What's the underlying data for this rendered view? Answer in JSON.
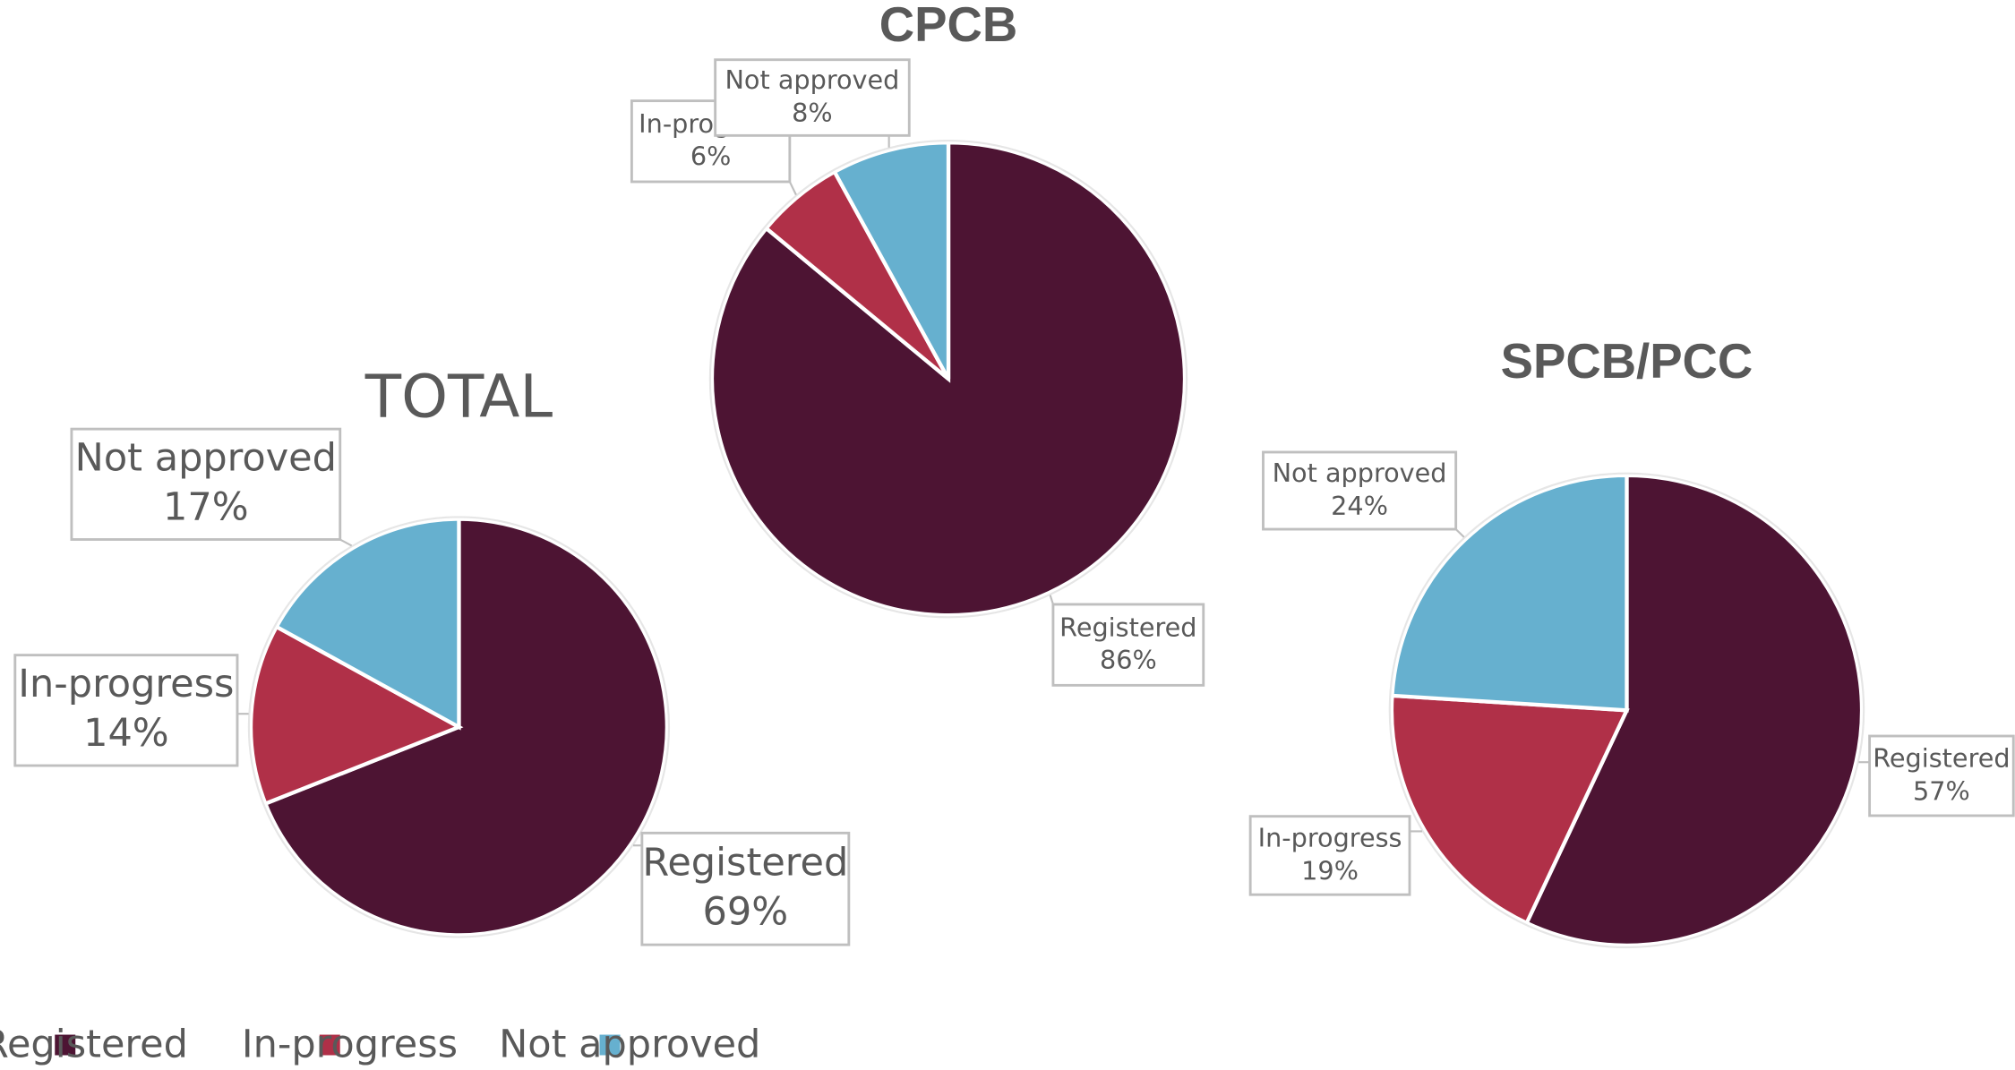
{
  "chart_data": [
    {
      "type": "pie",
      "title": "TOTAL",
      "categories": [
        "Registered",
        "In-progress",
        "Not approved"
      ],
      "values": [
        69,
        14,
        17
      ],
      "value_labels": [
        "69%",
        "14%",
        "17%"
      ],
      "colors": [
        "#4d1433",
        "#b03048",
        "#66b0cf"
      ]
    },
    {
      "type": "pie",
      "title": "CPCB",
      "categories": [
        "Registered",
        "In-progress",
        "Not approved"
      ],
      "values": [
        86,
        6,
        8
      ],
      "value_labels": [
        "86%",
        "6%",
        "8%"
      ],
      "colors": [
        "#4d1433",
        "#b03048",
        "#66b0cf"
      ]
    },
    {
      "type": "pie",
      "title": "SPCB/PCC",
      "categories": [
        "Registered",
        "In-progress",
        "Not approved"
      ],
      "values": [
        57,
        19,
        24
      ],
      "value_labels": [
        "57%",
        "19%",
        "24%"
      ],
      "colors": [
        "#4d1433",
        "#b03048",
        "#66b0cf"
      ]
    }
  ]
}
